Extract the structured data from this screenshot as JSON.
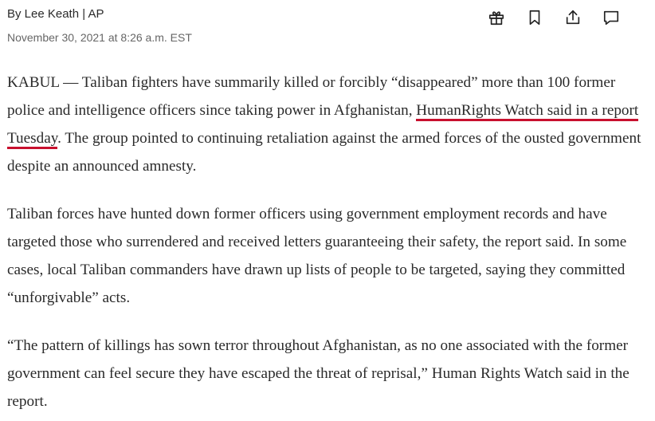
{
  "header": {
    "byline": "By Lee Keath | AP",
    "timestamp": "November 30, 2021 at 8:26 a.m. EST"
  },
  "actions": {
    "gift": "gift-icon",
    "bookmark": "bookmark-icon",
    "share": "share-icon",
    "comment": "comment-icon"
  },
  "accent_color": "#c8102e",
  "article": {
    "p1_before": "KABUL — Taliban fighters have summarily killed or forcibly “disappeared” more than 100 former police and intelligence officers since taking power in Afghanistan, ",
    "p1_highlight_a": "Human",
    "p1_highlight_b": "Rights Watch said in a report Tuesday",
    "p1_after": ". The group pointed to continuing retaliation against the armed forces of the ousted government despite an announced amnesty.",
    "p2": "Taliban forces have hunted down former officers using government employment records and have targeted those who surrendered and received letters guaranteeing their safety, the report said. In some cases, local Taliban commanders have drawn up lists of people to be targeted, saying they committed “unforgivable” acts.",
    "p3": "“The pattern of killings has sown terror throughout Afghanistan, as no one associated with the former government can feel secure they have escaped the threat of reprisal,” Human Rights Watch said in the report."
  }
}
